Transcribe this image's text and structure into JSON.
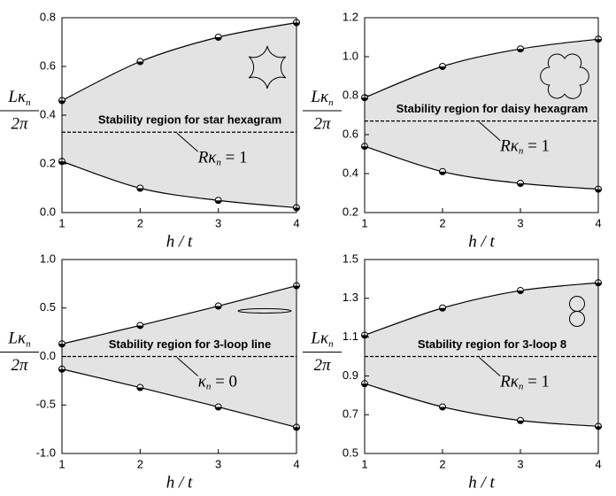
{
  "chart_data": [
    {
      "type": "line",
      "fill_between": true,
      "fill": "#e3e3e3",
      "xlabel": "h / t",
      "ylabel": {
        "numerator": [
          "Lκ",
          "n"
        ],
        "denominator": "2π"
      },
      "x": [
        1,
        2,
        3,
        4
      ],
      "xlim": [
        1,
        4
      ],
      "xticks": [
        1,
        2,
        3,
        4
      ],
      "ylim": [
        0,
        0.8
      ],
      "yticks": [
        {
          "value": 0,
          "label": "0.0"
        },
        0.2,
        0.4,
        0.6,
        0.8
      ],
      "series": [
        {
          "color": "#000000",
          "values": [
            0.46,
            0.62,
            0.72,
            0.78
          ]
        },
        {
          "color": "#000000",
          "values": [
            0.21,
            0.1,
            0.05,
            0.02
          ]
        }
      ],
      "reference": 0.33,
      "region_label": "Stability region for star hexagram",
      "annotation": [
        "Rκ",
        "n",
        " = 1"
      ]
    },
    {
      "type": "line",
      "fill_between": true,
      "fill": "#e3e3e3",
      "xlabel": "h / t",
      "ylabel": {
        "numerator": [
          "Lκ",
          "n"
        ],
        "denominator": "2π"
      },
      "x": [
        1,
        2,
        3,
        4
      ],
      "xlim": [
        1,
        4
      ],
      "xticks": [
        1,
        2,
        3,
        4
      ],
      "ylim": [
        0.2,
        1.2
      ],
      "yticks": [
        0.2,
        0.4,
        0.6,
        0.8,
        {
          "value": 1,
          "label": "1.0"
        },
        1.2
      ],
      "series": [
        {
          "color": "#000000",
          "values": [
            0.79,
            0.95,
            1.04,
            1.09
          ]
        },
        {
          "color": "#000000",
          "values": [
            0.54,
            0.41,
            0.35,
            0.32
          ]
        }
      ],
      "reference": 0.67,
      "region_label": "Stability region for daisy hexagram",
      "annotation": [
        "Rκ",
        "n",
        " = 1"
      ]
    },
    {
      "type": "line",
      "fill_between": true,
      "fill": "#e3e3e3",
      "xlabel": "h / t",
      "ylabel": {
        "numerator": [
          "Lκ",
          "n"
        ],
        "denominator": "2π"
      },
      "x": [
        1,
        2,
        3,
        4
      ],
      "xlim": [
        1,
        4
      ],
      "xticks": [
        1,
        2,
        3,
        4
      ],
      "ylim": [
        -1,
        1
      ],
      "yticks": [
        {
          "value": -1,
          "label": "-1.0"
        },
        -0.5,
        {
          "value": 0,
          "label": "0.0"
        },
        0.5,
        {
          "value": 1,
          "label": "1.0"
        }
      ],
      "series": [
        {
          "color": "#000000",
          "values": [
            0.13,
            0.32,
            0.52,
            0.73
          ]
        },
        {
          "color": "#000000",
          "values": [
            -0.13,
            -0.32,
            -0.52,
            -0.73
          ]
        }
      ],
      "reference": 0,
      "region_label": "Stability region for 3-loop line",
      "annotation": [
        "κ",
        "n",
        " = 0"
      ]
    },
    {
      "type": "line",
      "fill_between": true,
      "fill": "#e3e3e3",
      "xlabel": "h / t",
      "ylabel": {
        "numerator": [
          "Lκ",
          "n"
        ],
        "denominator": "2π"
      },
      "x": [
        1,
        2,
        3,
        4
      ],
      "xlim": [
        1,
        4
      ],
      "xticks": [
        1,
        2,
        3,
        4
      ],
      "ylim": [
        0.5,
        1.5
      ],
      "yticks": [
        0.5,
        0.7,
        0.9,
        1.1,
        1.3,
        1.5
      ],
      "series": [
        {
          "color": "#000000",
          "values": [
            1.11,
            1.25,
            1.34,
            1.38
          ]
        },
        {
          "color": "#000000",
          "values": [
            0.86,
            0.74,
            0.67,
            0.64
          ]
        }
      ],
      "reference": 1,
      "region_label": "Stability region for 3-loop 8",
      "annotation": [
        "Rκ",
        "n",
        " = 1"
      ]
    }
  ]
}
